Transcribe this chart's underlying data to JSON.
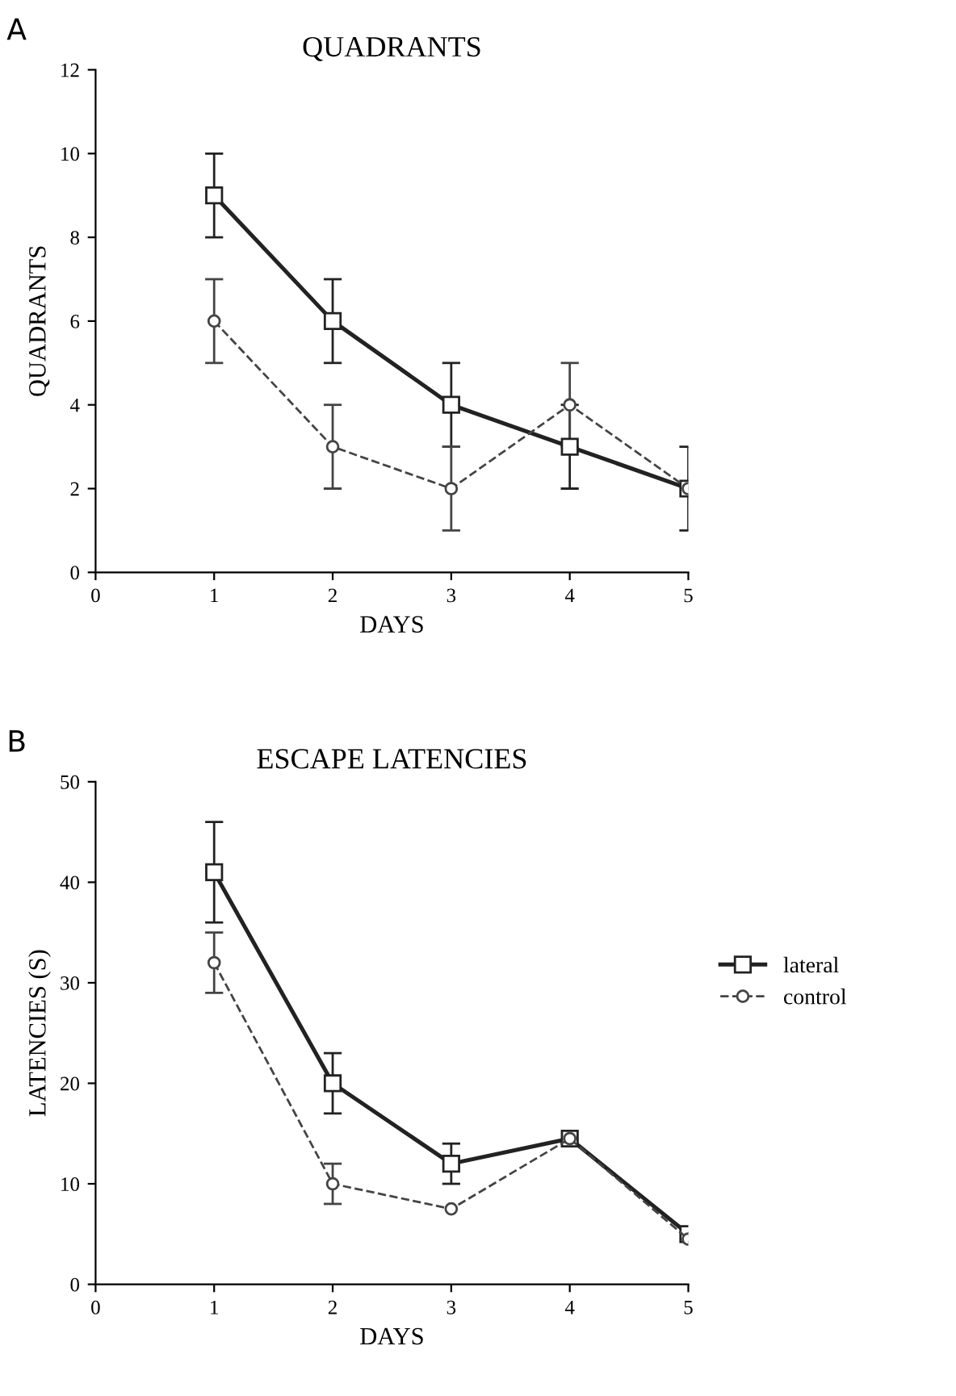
{
  "chart_data": [
    {
      "type": "line",
      "title": "QUADRANTS",
      "xlabel": "DAYS",
      "ylabel": "QUADRANTS",
      "annotations": [
        "A"
      ],
      "x": [
        1,
        2,
        3,
        4,
        5
      ],
      "xlim": [
        0,
        5
      ],
      "xticks": [
        0,
        1,
        2,
        3,
        4,
        5
      ],
      "ylim": [
        0,
        12
      ],
      "yticks": [
        0,
        2,
        4,
        6,
        8,
        10,
        12
      ],
      "grid": false,
      "legend": false,
      "series": [
        {
          "color": "#222222",
          "marker": "square",
          "line_style": "solid",
          "values": [
            9,
            6,
            4,
            3,
            2
          ],
          "errors": [
            1,
            1,
            1,
            1,
            1
          ]
        },
        {
          "color": "#444444",
          "marker": "circle",
          "line_style": "dashed",
          "values": [
            6,
            3,
            2,
            4,
            2
          ],
          "errors": [
            1,
            1,
            1,
            1,
            null
          ]
        }
      ]
    },
    {
      "type": "line",
      "title": "ESCAPE LATENCIES",
      "xlabel": "DAYS",
      "ylabel": "LATENCIES (S)",
      "annotations": [
        "B"
      ],
      "x": [
        1,
        2,
        3,
        4,
        5
      ],
      "xlim": [
        0,
        5
      ],
      "xticks": [
        0,
        1,
        2,
        3,
        4,
        5
      ],
      "ylim": [
        0,
        50
      ],
      "yticks": [
        0,
        10,
        20,
        30,
        40,
        50
      ],
      "grid": false,
      "legend": "right",
      "series": [
        {
          "name": "lateral",
          "color": "#222222",
          "marker": "square",
          "line_style": "solid",
          "values": [
            41,
            20,
            12,
            14.5,
            5
          ],
          "errors": [
            5,
            3,
            2,
            null,
            null
          ]
        },
        {
          "name": "control",
          "color": "#444444",
          "marker": "circle",
          "line_style": "dashed",
          "values": [
            32,
            10,
            7.5,
            14.5,
            4.5
          ],
          "errors": [
            3,
            2,
            null,
            null,
            null
          ]
        }
      ]
    }
  ]
}
